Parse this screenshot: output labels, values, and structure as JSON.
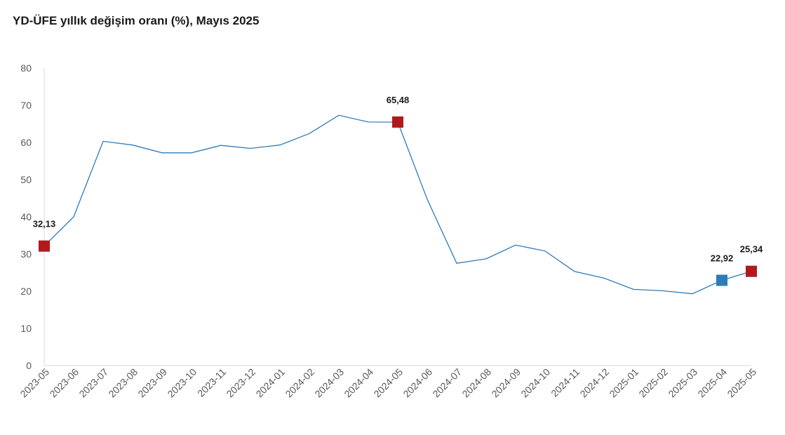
{
  "title": "YD-ÜFE yıllık değişim oranı (%), Mayıs 2025",
  "chart_data": {
    "type": "line",
    "title": "YD-ÜFE yıllık değişim oranı (%), Mayıs 2025",
    "xlabel": "",
    "ylabel": "",
    "ylim": [
      0,
      80
    ],
    "yticks": [
      "0",
      "10",
      "20",
      "30",
      "40",
      "50",
      "60",
      "70",
      "80"
    ],
    "grid": false,
    "line_color": "#2e7bb8",
    "categories": [
      "2023-05",
      "2023-06",
      "2023-07",
      "2023-08",
      "2023-09",
      "2023-10",
      "2023-11",
      "2023-12",
      "2024-01",
      "2024-02",
      "2024-03",
      "2024-04",
      "2024-05",
      "2024-06",
      "2024-07",
      "2024-08",
      "2024-09",
      "2024-10",
      "2024-11",
      "2024-12",
      "2025-01",
      "2025-02",
      "2025-03",
      "2025-04",
      "2025-05"
    ],
    "series": [
      {
        "values": [
          32.13,
          40.0,
          60.3,
          59.3,
          57.2,
          57.2,
          59.2,
          58.4,
          59.3,
          62.4,
          67.3,
          65.5,
          65.48,
          44.7,
          27.5,
          28.7,
          32.4,
          30.8,
          25.3,
          23.5,
          20.5,
          20.1,
          19.3,
          22.92,
          25.34
        ]
      }
    ],
    "highlighted_points": [
      {
        "index": 0,
        "label": "32,13",
        "color": "#b11a1d"
      },
      {
        "index": 12,
        "label": "65,48",
        "color": "#b11a1d"
      },
      {
        "index": 23,
        "label": "22,92",
        "color": "#2e7bb8"
      },
      {
        "index": 24,
        "label": "25,34",
        "color": "#b11a1d"
      }
    ]
  }
}
